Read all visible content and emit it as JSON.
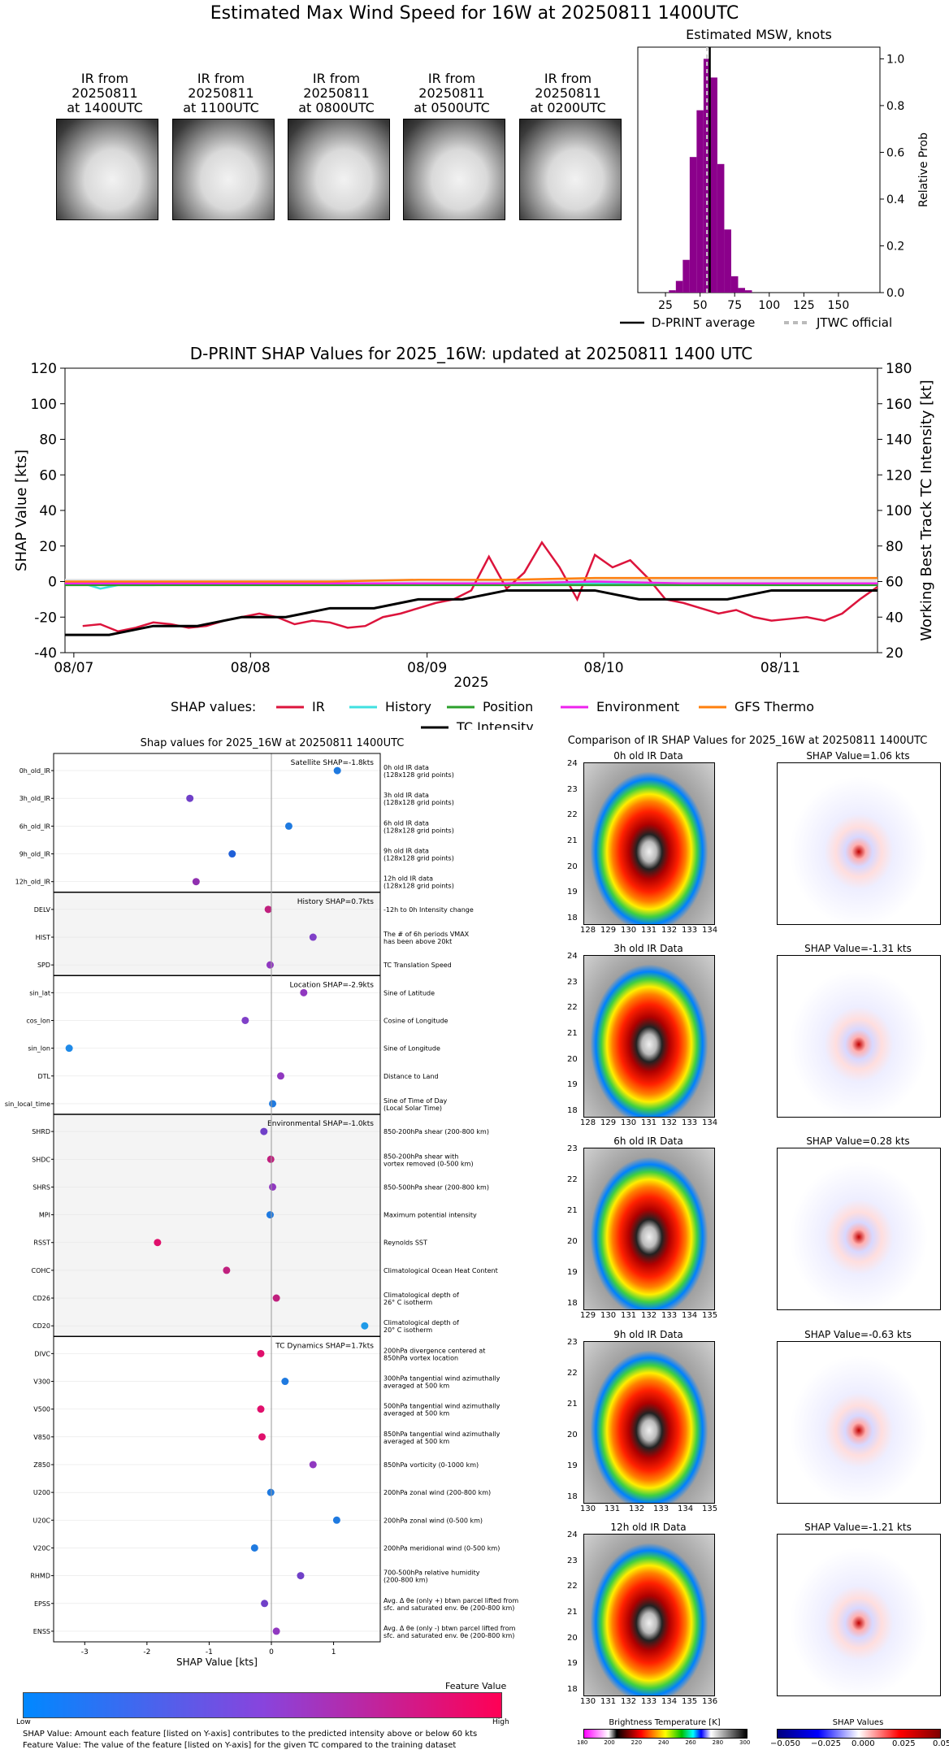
{
  "header": {
    "title": "Estimated Max Wind Speed for 16W at 20250811 1400UTC"
  },
  "thumbnails": [
    {
      "line1": "IR from",
      "line2": "20250811",
      "line3": "at 1400UTC"
    },
    {
      "line1": "IR from",
      "line2": "20250811",
      "line3": "at 1100UTC"
    },
    {
      "line1": "IR from",
      "line2": "20250811",
      "line3": "at 0800UTC"
    },
    {
      "line1": "IR from",
      "line2": "20250811",
      "line3": "at 0500UTC"
    },
    {
      "line1": "IR from",
      "line2": "20250811",
      "line3": "at 0200UTC"
    }
  ],
  "chart_data": [
    {
      "type": "bar",
      "title": "Estimated MSW, knots",
      "ylabel": "Relative Prob",
      "xlim": [
        5,
        180
      ],
      "ylim": [
        0,
        1.05
      ],
      "x_ticks": [
        25,
        50,
        75,
        100,
        125,
        150
      ],
      "y_ticks": [
        0.0,
        0.2,
        0.4,
        0.6,
        0.8,
        1.0
      ],
      "bar_color": "#8b008b",
      "categories": [
        30,
        35,
        40,
        45,
        50,
        55,
        60,
        65,
        70,
        75,
        80,
        85
      ],
      "values": [
        0.01,
        0.05,
        0.14,
        0.58,
        0.78,
        1.0,
        0.92,
        0.55,
        0.27,
        0.07,
        0.02,
        0.01
      ],
      "dprint_average": 57,
      "jtwc_official": 55,
      "legend": [
        {
          "label": "D-PRINT average",
          "style": "solid",
          "color": "#000000"
        },
        {
          "label": "JTWC official",
          "style": "dashed",
          "color": "#aaaaaa"
        }
      ]
    },
    {
      "type": "line",
      "title": "D-PRINT SHAP Values for 2025_16W: updated at 20250811 1400 UTC",
      "xlabel": "2025",
      "ylabel": "SHAP Value [kts]",
      "ylabel_right": "Working Best Track TC Intensity [kt]",
      "ylim": [
        -40,
        120
      ],
      "ylim_right": [
        20,
        180
      ],
      "y_ticks": [
        -40,
        -20,
        0,
        20,
        40,
        60,
        80,
        100,
        120
      ],
      "y_ticks_right": [
        20,
        40,
        60,
        80,
        100,
        120,
        140,
        160,
        180
      ],
      "x_ticks": [
        "08/07",
        "08/08",
        "08/09",
        "08/10",
        "08/11"
      ],
      "x_range_days": [
        0,
        4.6
      ],
      "legend_prefix": "SHAP values:",
      "series": [
        {
          "name": "IR",
          "color": "#dc143c",
          "x": [
            0.1,
            0.2,
            0.3,
            0.4,
            0.5,
            0.6,
            0.7,
            0.8,
            0.9,
            1.0,
            1.1,
            1.2,
            1.3,
            1.4,
            1.5,
            1.6,
            1.7,
            1.8,
            1.9,
            2.0,
            2.1,
            2.2,
            2.3,
            2.4,
            2.5,
            2.6,
            2.7,
            2.8,
            2.9,
            3.0,
            3.1,
            3.2,
            3.3,
            3.4,
            3.5,
            3.6,
            3.7,
            3.8,
            3.9,
            4.0,
            4.1,
            4.2,
            4.3,
            4.4,
            4.5,
            4.6
          ],
          "values": [
            -25,
            -24,
            -28,
            -26,
            -23,
            -24,
            -26,
            -25,
            -22,
            -20,
            -18,
            -20,
            -24,
            -22,
            -23,
            -26,
            -25,
            -20,
            -18,
            -15,
            -12,
            -10,
            -5,
            14,
            -4,
            5,
            22,
            8,
            -10,
            15,
            8,
            12,
            2,
            -10,
            -12,
            -15,
            -18,
            -16,
            -20,
            -22,
            -21,
            -20,
            -22,
            -18,
            -10,
            -3
          ]
        },
        {
          "name": "History",
          "color": "#40e0e0",
          "x": [
            0,
            0.1,
            0.2,
            0.3,
            0.5,
            1.0,
            1.5,
            2.0,
            2.5,
            3.0,
            3.5,
            4.0,
            4.6
          ],
          "values": [
            -1,
            -1,
            -4,
            -2,
            -2,
            -1,
            -1,
            -1,
            -1,
            -1,
            -1,
            -1,
            -1
          ]
        },
        {
          "name": "Position",
          "color": "#2ca02c",
          "x": [
            0,
            0.5,
            1.0,
            1.5,
            2.0,
            2.5,
            3.0,
            3.5,
            4.0,
            4.6
          ],
          "values": [
            -2,
            -2,
            -2,
            -2,
            -2,
            -2,
            -2,
            -2,
            -2,
            -2
          ]
        },
        {
          "name": "Environment",
          "color": "#ee22ee",
          "x": [
            0,
            0.5,
            1.0,
            1.5,
            2.0,
            2.5,
            3.0,
            3.5,
            4.0,
            4.6
          ],
          "values": [
            -1,
            -1,
            -1,
            -1,
            -1,
            -1,
            0,
            -1,
            -1,
            -1
          ]
        },
        {
          "name": "GFS Thermo",
          "color": "#ff7f0e",
          "x": [
            0,
            0.5,
            1.0,
            1.5,
            2.0,
            2.5,
            3.0,
            3.5,
            4.0,
            4.6
          ],
          "values": [
            0,
            0,
            0,
            0,
            1,
            1,
            2,
            2,
            2,
            2
          ]
        },
        {
          "name": "TC Intensity",
          "color": "#000000",
          "axis": "right",
          "x": [
            0,
            0.25,
            0.5,
            0.75,
            1.0,
            1.25,
            1.5,
            1.75,
            2.0,
            2.25,
            2.5,
            2.75,
            3.0,
            3.25,
            3.5,
            3.75,
            4.0,
            4.25,
            4.5,
            4.6
          ],
          "values": [
            30,
            30,
            35,
            35,
            40,
            40,
            45,
            45,
            50,
            50,
            55,
            55,
            55,
            50,
            50,
            50,
            55,
            55,
            55,
            55
          ]
        }
      ]
    },
    {
      "type": "scatter",
      "title": "Shap values for 2025_16W at 20250811 1400UTC",
      "xlabel": "SHAP Value [kts]",
      "xlim": [
        -3.5,
        1.75
      ],
      "x_ticks": [
        -3,
        -2,
        -1,
        0,
        1
      ],
      "groups": [
        {
          "label": "Satellite SHAP=-1.8kts",
          "features": [
            {
              "name": "0h_old_IR",
              "desc1": "0h old IR data",
              "desc2": "(128x128 grid points)",
              "shap": 1.06,
              "color": "#1f7ae0"
            },
            {
              "name": "3h_old_IR",
              "desc1": "3h old IR data",
              "desc2": "(128x128 grid points)",
              "shap": -1.31,
              "color": "#7040c8"
            },
            {
              "name": "6h_old_IR",
              "desc1": "6h old IR data",
              "desc2": "(128x128 grid points)",
              "shap": 0.28,
              "color": "#1f7ae0"
            },
            {
              "name": "9h_old_IR",
              "desc1": "9h old IR data",
              "desc2": "(128x128 grid points)",
              "shap": -0.63,
              "color": "#2060d8"
            },
            {
              "name": "12h_old_IR",
              "desc1": "12h old IR data",
              "desc2": "(128x128 grid points)",
              "shap": -1.21,
              "color": "#9030b0"
            }
          ]
        },
        {
          "label": "History SHAP=0.7kts",
          "features": [
            {
              "name": "DELV",
              "desc1": "-12h to 0h Intensity change",
              "desc2": "",
              "shap": -0.05,
              "color": "#c0207e"
            },
            {
              "name": "HIST",
              "desc1": "The # of 6h periods VMAX",
              "desc2": "has been above 20kt",
              "shap": 0.67,
              "color": "#8040c8"
            },
            {
              "name": "SPD",
              "desc1": "TC Translation Speed",
              "desc2": "",
              "shap": -0.02,
              "color": "#9038c0"
            }
          ]
        },
        {
          "label": "Location SHAP=-2.9kts",
          "features": [
            {
              "name": "sin_lat",
              "desc1": "Sine of Latitude",
              "desc2": "",
              "shap": 0.52,
              "color": "#9038c0"
            },
            {
              "name": "cos_lon",
              "desc1": "Cosine of Longitude",
              "desc2": "",
              "shap": -0.42,
              "color": "#8040c8"
            },
            {
              "name": "sin_lon",
              "desc1": "Sine of Longitude",
              "desc2": "",
              "shap": -3.25,
              "color": "#1f8ae8"
            },
            {
              "name": "DTL",
              "desc1": "Distance to Land",
              "desc2": "",
              "shap": 0.15,
              "color": "#9038c0"
            },
            {
              "name": "sin_local_time",
              "desc1": "Sine of Time of Day",
              "desc2": "(Local Solar Time)",
              "shap": 0.02,
              "color": "#1f7ae0"
            }
          ]
        },
        {
          "label": "Environmental SHAP=-1.0kts",
          "features": [
            {
              "name": "SHRD",
              "desc1": "850-200hPa shear (200-800 km)",
              "desc2": "",
              "shap": -0.12,
              "color": "#7040c8"
            },
            {
              "name": "SHDC",
              "desc1": "850-200hPa shear with",
              "desc2": "vortex removed (0-500 km)",
              "shap": -0.01,
              "color": "#c0207e"
            },
            {
              "name": "SHRS",
              "desc1": "850-500hPa shear (200-800 km)",
              "desc2": "",
              "shap": 0.02,
              "color": "#9038c0"
            },
            {
              "name": "MPI",
              "desc1": "Maximum potential intensity",
              "desc2": "",
              "shap": -0.02,
              "color": "#1f7ae0"
            },
            {
              "name": "RSST",
              "desc1": "Reynolds SST",
              "desc2": "",
              "shap": -1.83,
              "color": "#e0106c"
            },
            {
              "name": "COHC",
              "desc1": "Climatological Ocean Heat Content",
              "desc2": "",
              "shap": -0.72,
              "color": "#c0207e"
            },
            {
              "name": "CD26",
              "desc1": "Climatological depth of",
              "desc2": "26° C isotherm",
              "shap": 0.08,
              "color": "#c0207e"
            },
            {
              "name": "CD20",
              "desc1": "Climatological depth of",
              "desc2": "20° C isotherm",
              "shap": 1.5,
              "color": "#1f9ae8"
            }
          ]
        },
        {
          "label": "TC Dynamics SHAP=1.7kts",
          "features": [
            {
              "name": "DIVC",
              "desc1": "200hPa divergence centered at",
              "desc2": "850hPa vortex location",
              "shap": -0.17,
              "color": "#e0106c"
            },
            {
              "name": "V300",
              "desc1": "300hPa tangential wind azimuthally",
              "desc2": "averaged at 500 km",
              "shap": 0.22,
              "color": "#1f7ae0"
            },
            {
              "name": "V500",
              "desc1": "500hPa tangential wind azimuthally",
              "desc2": "averaged at 500 km",
              "shap": -0.17,
              "color": "#e0106c"
            },
            {
              "name": "V850",
              "desc1": "850hPa tangential wind azimuthally",
              "desc2": "averaged at 500 km",
              "shap": -0.15,
              "color": "#e0106c"
            },
            {
              "name": "Z850",
              "desc1": "850hPa vorticity (0-1000 km)",
              "desc2": "",
              "shap": 0.67,
              "color": "#9038c0"
            },
            {
              "name": "U200",
              "desc1": "200hPa zonal wind (200-800 km)",
              "desc2": "",
              "shap": -0.01,
              "color": "#1f7ae0"
            },
            {
              "name": "U20C",
              "desc1": "200hPa zonal wind (0-500 km)",
              "desc2": "",
              "shap": 1.05,
              "color": "#1f7ae0"
            },
            {
              "name": "V20C",
              "desc1": "200hPa meridional wind (0-500 km)",
              "desc2": "",
              "shap": -0.27,
              "color": "#1f7ae0"
            },
            {
              "name": "RHMD",
              "desc1": "700-500hPa relative humidity",
              "desc2": "(200-800 km)",
              "shap": 0.47,
              "color": "#7040c8"
            },
            {
              "name": "EPSS",
              "desc1": "Avg. Δ θe (only +) btwn parcel lifted from",
              "desc2": "sfc. and saturated env. θe (200-800 km)",
              "shap": -0.11,
              "color": "#7040c8"
            },
            {
              "name": "ENSS",
              "desc1": "Avg. Δ θe (only -) btwn parcel lifted from",
              "desc2": "sfc. and saturated env. θe (200-800 km)",
              "shap": 0.08,
              "color": "#9038c0"
            }
          ]
        }
      ]
    }
  ],
  "feature_bar": {
    "title": "Feature Value",
    "low": "Low",
    "high": "High",
    "color_low": "#0088ff",
    "color_high": "#ff0055"
  },
  "footnotes": {
    "line1": "SHAP Value: Amount each feature [listed on Y-axis] contributes to the predicted intensity above or below 60 kts",
    "line2": "Feature Value: The value of the feature [listed on Y-axis] for the given TC compared to the training dataset"
  },
  "comparison": {
    "title": "Comparison of IR SHAP Values for 2025_16W at 20250811 1400UTC",
    "rows": [
      {
        "ir_title": "0h old IR Data",
        "shap_title": "SHAP Value=1.06 kts",
        "yticks": [
          "24",
          "23",
          "22",
          "21",
          "20",
          "19",
          "18"
        ],
        "xticks": [
          "128",
          "129",
          "130",
          "131",
          "132",
          "133",
          "134"
        ]
      },
      {
        "ir_title": "3h old IR Data",
        "shap_title": "SHAP Value=-1.31 kts",
        "yticks": [
          "24",
          "23",
          "22",
          "21",
          "20",
          "19",
          "18"
        ],
        "xticks": [
          "128",
          "129",
          "130",
          "131",
          "132",
          "133",
          "134"
        ]
      },
      {
        "ir_title": "6h old IR Data",
        "shap_title": "SHAP Value=0.28 kts",
        "yticks": [
          "23",
          "22",
          "21",
          "20",
          "19",
          "18"
        ],
        "xticks": [
          "129",
          "130",
          "131",
          "132",
          "133",
          "134",
          "135"
        ]
      },
      {
        "ir_title": "9h old IR Data",
        "shap_title": "SHAP Value=-0.63 kts",
        "yticks": [
          "23",
          "22",
          "21",
          "20",
          "19",
          "18"
        ],
        "xticks": [
          "130",
          "131",
          "132",
          "133",
          "134",
          "135"
        ]
      },
      {
        "ir_title": "12h old IR Data",
        "shap_title": "SHAP Value=-1.21 kts",
        "yticks": [
          "24",
          "23",
          "22",
          "21",
          "20",
          "19",
          "18"
        ],
        "xticks": [
          "130",
          "131",
          "132",
          "133",
          "134",
          "135",
          "136"
        ]
      }
    ],
    "bt_colorbar": {
      "label": "Brightness Temperature [K]",
      "ticks": [
        "180",
        "200",
        "220",
        "240",
        "260",
        "280",
        "300"
      ]
    },
    "shap_colorbar": {
      "label": "SHAP Values",
      "ticks": [
        "−0.050",
        "−0.025",
        "0.000",
        "0.025",
        "0.050"
      ]
    }
  }
}
